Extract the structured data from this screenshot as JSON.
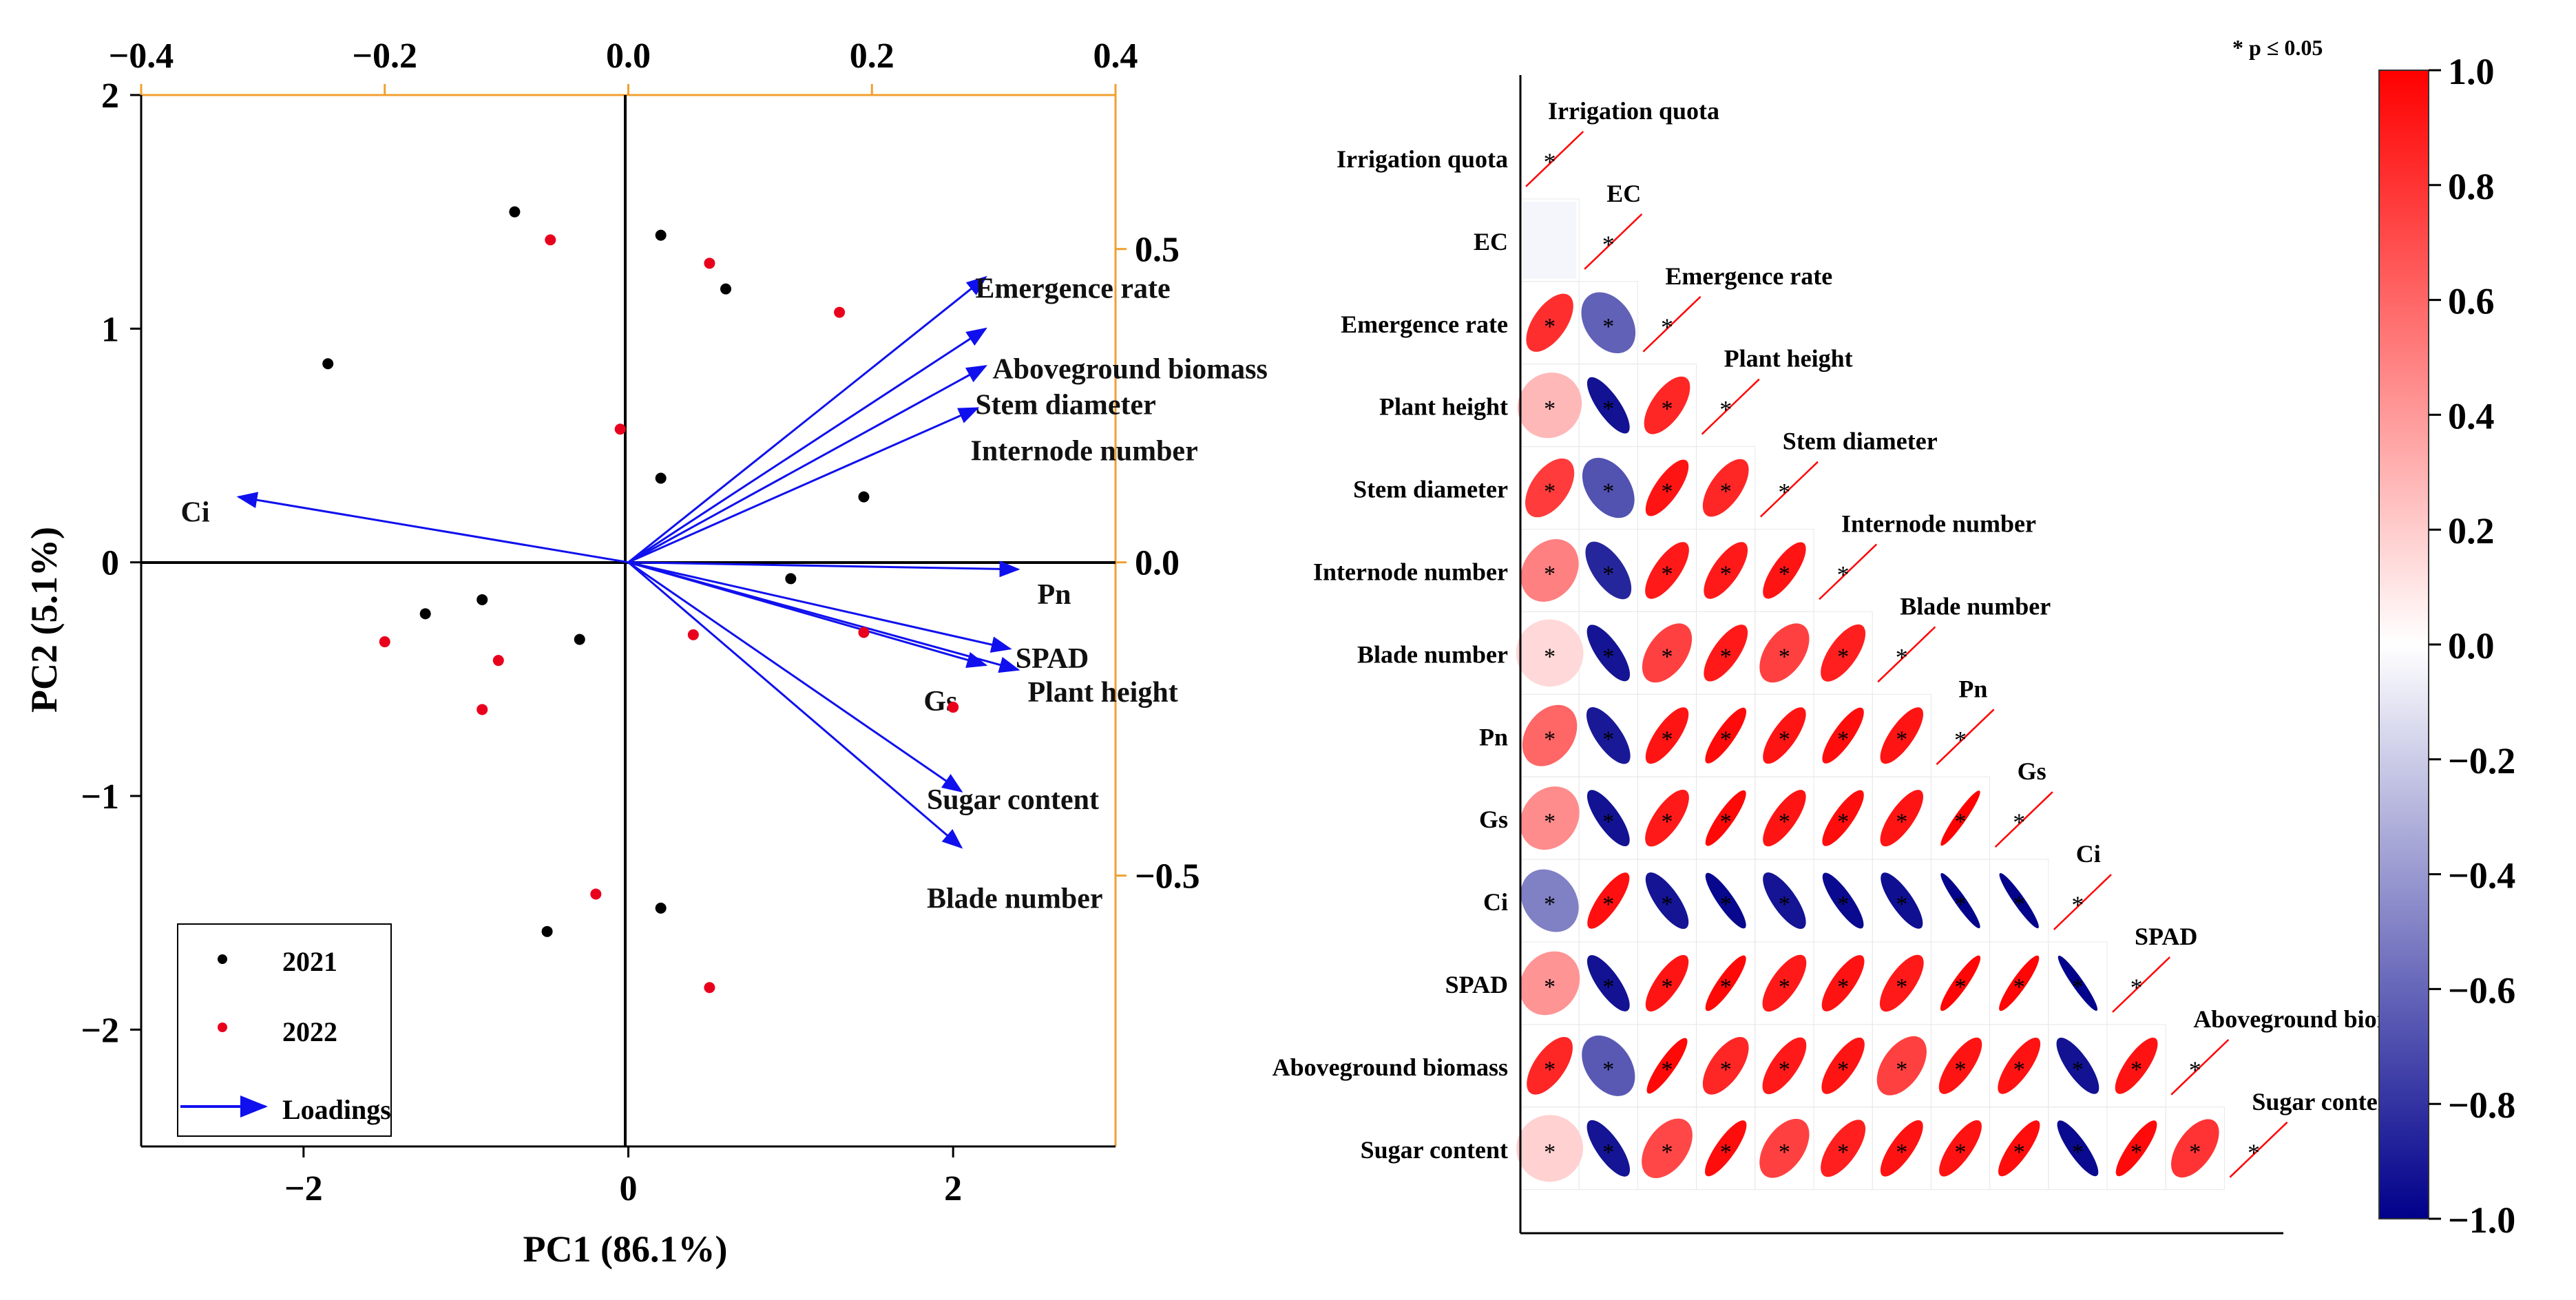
{
  "chart_data": [
    {
      "type": "scatter",
      "subtype": "pca-biplot",
      "title": "",
      "xlabel": "PC1 (86.1%)",
      "ylabel": "PC2 (5.1%)",
      "xlim": [
        -3,
        3
      ],
      "ylim": [
        -2.5,
        2
      ],
      "x_ticks": [
        -2,
        0,
        2
      ],
      "x_tick_labels": [
        "−2",
        "0",
        "2"
      ],
      "y_ticks": [
        -2,
        -1,
        0,
        1,
        2
      ],
      "y_tick_labels": [
        "−2",
        "−1",
        "0",
        "1",
        "2"
      ],
      "loading_axis_range": [
        -0.4,
        0.4
      ],
      "top_ticks": [
        -0.4,
        -0.2,
        0.0,
        0.2,
        0.4
      ],
      "top_tick_labels": [
        "−0.4",
        "−0.2",
        "0.0",
        "0.2",
        "0.4"
      ],
      "right_ticks": [
        0.5,
        0.0,
        -0.5
      ],
      "right_tick_labels": [
        "0.5",
        "0.0",
        "−0.5"
      ],
      "series": [
        {
          "name": "2021",
          "color": "#000000",
          "points": [
            [
              -0.7,
              1.5
            ],
            [
              0.2,
              1.4
            ],
            [
              0.6,
              1.17
            ],
            [
              -1.85,
              0.85
            ],
            [
              0.2,
              0.36
            ],
            [
              1.45,
              0.28
            ],
            [
              1.0,
              -0.07
            ],
            [
              -1.25,
              -0.22
            ],
            [
              -0.9,
              -0.16
            ],
            [
              -0.3,
              -0.33
            ],
            [
              0.2,
              -1.48
            ],
            [
              -0.5,
              -1.58
            ]
          ]
        },
        {
          "name": "2022",
          "color": "#e8001c",
          "points": [
            [
              -0.48,
              1.38
            ],
            [
              0.5,
              1.28
            ],
            [
              1.3,
              1.07
            ],
            [
              -0.05,
              0.57
            ],
            [
              -1.5,
              -0.34
            ],
            [
              -0.8,
              -0.42
            ],
            [
              -0.9,
              -0.63
            ],
            [
              0.4,
              -0.31
            ],
            [
              1.45,
              -0.3
            ],
            [
              2.0,
              -0.62
            ],
            [
              -0.2,
              -1.42
            ],
            [
              0.5,
              -1.82
            ]
          ]
        }
      ],
      "loadings": [
        {
          "label": "Emergence rate",
          "end": [
            2.2,
            1.22
          ]
        },
        {
          "label": "Aboveground biomass",
          "end": [
            2.2,
            1.0
          ]
        },
        {
          "label": "Stem diameter",
          "end": [
            2.2,
            0.84
          ]
        },
        {
          "label": "Internode number",
          "end": [
            2.15,
            0.66
          ]
        },
        {
          "label": "Ci",
          "end": [
            -2.4,
            0.28
          ]
        },
        {
          "label": "Pn",
          "end": [
            2.4,
            -0.03
          ]
        },
        {
          "label": "SPAD",
          "end": [
            2.35,
            -0.37
          ]
        },
        {
          "label": "Gs",
          "end": [
            2.2,
            -0.44
          ]
        },
        {
          "label": "Plant height",
          "end": [
            2.4,
            -0.46
          ]
        },
        {
          "label": "Sugar content",
          "end": [
            2.05,
            -0.98
          ]
        },
        {
          "label": "Blade number",
          "end": [
            2.05,
            -1.22
          ]
        }
      ],
      "loading_color": "#1010ee",
      "legend": {
        "position": "bottom-left",
        "entries": [
          "2021",
          "2022",
          "Loadings"
        ]
      }
    },
    {
      "type": "heatmap",
      "subtype": "correlation-ellipse-lower-triangle",
      "variables": [
        "Irrigation quota",
        "EC",
        "Emergence rate",
        "Plant height",
        "Stem diameter",
        "Internode number",
        "Blade number",
        "Pn",
        "Gs",
        "Ci",
        "SPAD",
        "Aboveground biomass",
        "Sugar content"
      ],
      "matrix": [
        [
          1,
          null,
          null,
          null,
          null,
          null,
          null,
          null,
          null,
          null,
          null,
          null,
          null
        ],
        [
          0.01,
          1,
          null,
          null,
          null,
          null,
          null,
          null,
          null,
          null,
          null,
          null,
          null
        ],
        [
          0.82,
          -0.62,
          1,
          null,
          null,
          null,
          null,
          null,
          null,
          null,
          null,
          null,
          null
        ],
        [
          0.28,
          -0.93,
          0.85,
          1,
          null,
          null,
          null,
          null,
          null,
          null,
          null,
          null,
          null
        ],
        [
          0.77,
          -0.68,
          0.92,
          0.85,
          1,
          null,
          null,
          null,
          null,
          null,
          null,
          null,
          null
        ],
        [
          0.5,
          -0.85,
          0.9,
          0.9,
          0.92,
          1,
          null,
          null,
          null,
          null,
          null,
          null,
          null
        ],
        [
          0.15,
          -0.92,
          0.75,
          0.9,
          0.75,
          0.88,
          1,
          null,
          null,
          null,
          null,
          null,
          null
        ],
        [
          0.6,
          -0.9,
          0.92,
          0.96,
          0.92,
          0.95,
          0.92,
          1,
          null,
          null,
          null,
          null,
          null
        ],
        [
          0.45,
          -0.93,
          0.9,
          0.97,
          0.92,
          0.95,
          0.92,
          0.99,
          1,
          null,
          null,
          null,
          null
        ],
        [
          -0.5,
          0.94,
          -0.92,
          -0.97,
          -0.92,
          -0.96,
          -0.94,
          -0.99,
          -0.99,
          1,
          null,
          null,
          null
        ],
        [
          0.42,
          -0.93,
          0.92,
          0.97,
          0.9,
          0.93,
          0.9,
          0.98,
          0.98,
          -0.99,
          1,
          null,
          null
        ],
        [
          0.85,
          -0.65,
          0.97,
          0.85,
          0.9,
          0.92,
          0.75,
          0.92,
          0.93,
          -0.93,
          0.93,
          1,
          null
        ],
        [
          0.18,
          -0.92,
          0.72,
          0.95,
          0.75,
          0.88,
          0.93,
          0.93,
          0.95,
          -0.96,
          0.96,
          0.8,
          1
        ]
      ],
      "significance_marker": "*",
      "significance_note": "* p ≤ 0.05",
      "colorbar": {
        "range": [
          -1.0,
          1.0
        ],
        "ticks": [
          1.0,
          0.8,
          0.6,
          0.4,
          0.2,
          0.0,
          -0.2,
          -0.4,
          -0.6,
          -0.8,
          -1.0
        ],
        "tick_labels": [
          "1.0",
          "0.8",
          "0.6",
          "0.4",
          "0.2",
          "0.0",
          "−0.2",
          "−0.4",
          "−0.6",
          "−0.8",
          "−1.0"
        ],
        "colors": {
          "negative": "#00008b",
          "zero": "#ffffff",
          "positive": "#ff0000"
        }
      }
    }
  ]
}
